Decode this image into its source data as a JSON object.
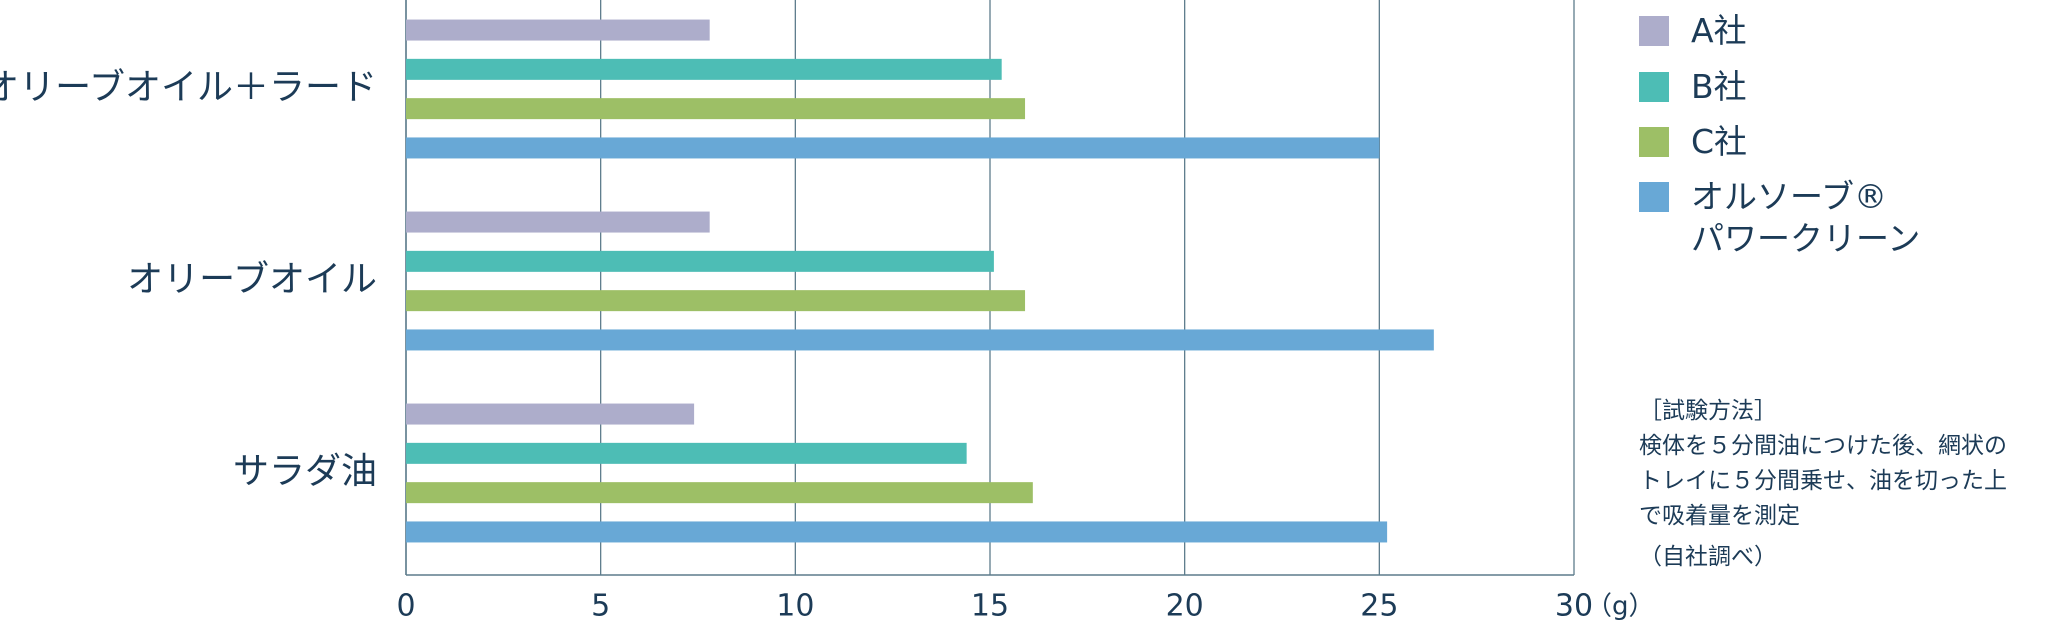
{
  "chart_data": {
    "type": "bar",
    "orientation": "horizontal",
    "categories": [
      "オリーブオイル＋ラード",
      "オリーブオイル",
      "サラダ油"
    ],
    "series": [
      {
        "name": "A社",
        "color": "#adadcb",
        "values": [
          7.8,
          7.8,
          7.4
        ]
      },
      {
        "name": "B社",
        "color": "#4dbdb5",
        "values": [
          15.3,
          15.1,
          14.4
        ]
      },
      {
        "name": "C社",
        "color": "#9dbf66",
        "values": [
          15.9,
          15.9,
          16.1
        ]
      },
      {
        "name": "オルソーブ®\nパワークリーン",
        "color": "#68a8d6",
        "values": [
          25.0,
          26.4,
          25.2
        ]
      }
    ],
    "xlim": [
      0,
      30
    ],
    "xticks": [
      0,
      5,
      10,
      15,
      20,
      25,
      30
    ],
    "x_unit": "（g）",
    "grid": true
  },
  "note": {
    "title": "［試験方法］",
    "lines": [
      "検体を５分間油につけた後、網状の",
      "トレイに５分間乗せ、油を切った上",
      "で吸着量を測定"
    ],
    "source": "（自社調べ）"
  }
}
